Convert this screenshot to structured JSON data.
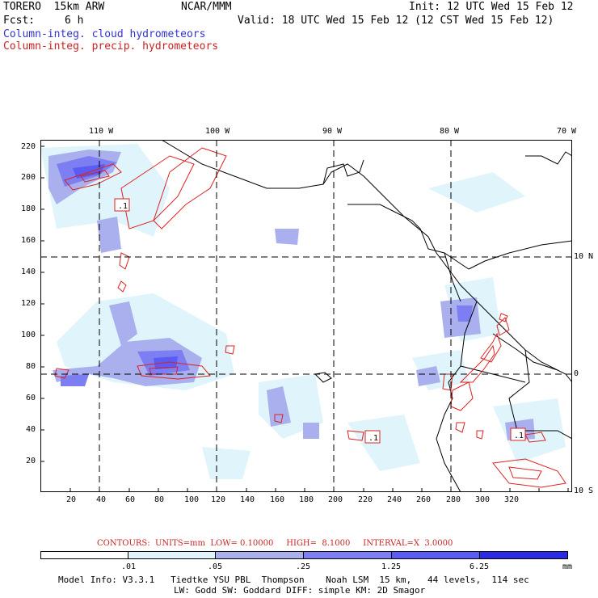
{
  "header": {
    "model": "TORERO  15km ARW",
    "org": "NCAR/MMM",
    "init": "Init: 12 UTC Wed 15 Feb 12",
    "fcst_label": "Fcst:",
    "fcst_value": "6 h",
    "valid": "Valid: 18 UTC Wed 15 Feb 12 (12 CST Wed 15 Feb 12)"
  },
  "legend": {
    "cloud": "Column-integ. cloud hydrometeors",
    "precip": "Column-integ. precip. hydrometeors"
  },
  "colors": {
    "cloud_shade_1": "#dff4fb",
    "cloud_shade_2": "#aab0ee",
    "cloud_shade_3": "#7c7ef2",
    "cloud_shade_4": "#5a5cf4",
    "cloud_shade_5": "#2b2be6",
    "precip_contour": "#dd2222"
  },
  "axes": {
    "top_lon": [
      "110 W",
      "100 W",
      "90 W",
      "80 W",
      "70 W"
    ],
    "right_lat": [
      "10 N",
      "0",
      "10 S"
    ],
    "left_y": [
      "220",
      "200",
      "180",
      "160",
      "140",
      "120",
      "100",
      "80",
      "60",
      "40",
      "20"
    ],
    "bottom_x": [
      "20",
      "40",
      "60",
      "80",
      "100",
      "120",
      "140",
      "160",
      "180",
      "200",
      "220",
      "240",
      "260",
      "280",
      "300",
      "320"
    ]
  },
  "contour_labels": [
    ".1",
    ".1",
    ".1"
  ],
  "contours_info": "CONTOURS:  UNITS=mm  LOW= 0.10000     HIGH=  8.1000     INTERVAL=X  3.0000",
  "colorbar": {
    "labels": [
      ".01",
      ".05",
      ".25",
      "1.25",
      "6.25"
    ],
    "units": "mm",
    "colors": [
      "#ffffff",
      "#dff4fb",
      "#aab0ee",
      "#7c7ef2",
      "#5a5cf4",
      "#2b2be6"
    ]
  },
  "footer": {
    "line1": "Model Info: V3.3.1   Tiedtke YSU PBL  Thompson    Noah LSM  15 km,   44 levels,  114 sec",
    "line2": "LW: Godd SW: Goddard DIFF: simple KM: 2D Smagor"
  }
}
